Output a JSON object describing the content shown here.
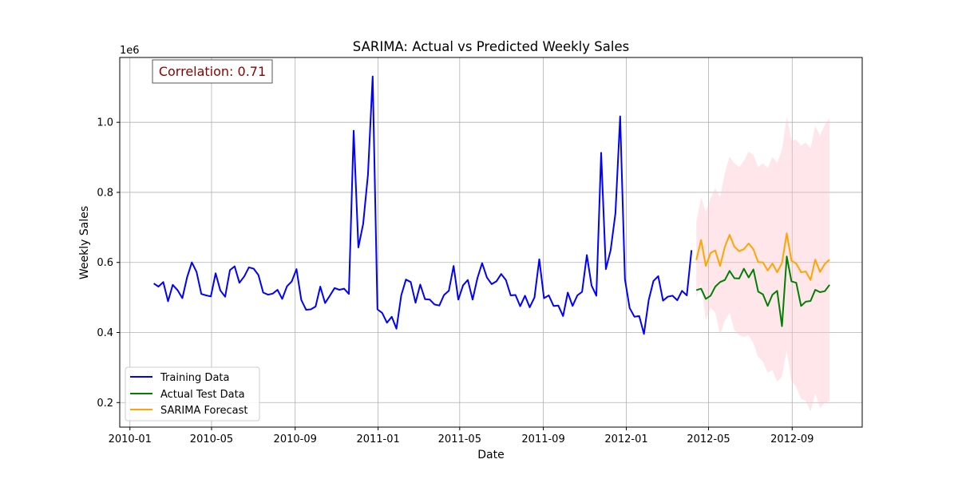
{
  "chart_data": {
    "type": "line",
    "title": "SARIMA: Actual vs Predicted Weekly Sales",
    "xlabel": "Date",
    "ylabel": "Weekly Sales",
    "y_scale_note": "1e6",
    "xlim": [
      "2009-12-17",
      "2012-12-13"
    ],
    "ylim": [
      130000,
      1185000
    ],
    "x_ticks": [
      "2010-01-01",
      "2010-05-01",
      "2010-09-01",
      "2011-01-01",
      "2011-05-01",
      "2011-09-01",
      "2012-01-01",
      "2012-05-01",
      "2012-09-01"
    ],
    "x_tick_labels": [
      "2010-01",
      "2010-05",
      "2010-09",
      "2011-01",
      "2011-05",
      "2011-09",
      "2012-01",
      "2012-05",
      "2012-09"
    ],
    "y_ticks": [
      200000,
      400000,
      600000,
      800000,
      1000000
    ],
    "y_tick_labels": [
      "0.2",
      "0.4",
      "0.6",
      "0.8",
      "1.0"
    ],
    "grid": true,
    "legend_position": "lower-left",
    "annotation": "Correlation: 0.71",
    "annotation_color": "#8b0000",
    "series": [
      {
        "name": "Training Data",
        "color": "#0000ff",
        "start_date": "2010-02-05",
        "step_days": 7,
        "values": [
          540000,
          531000,
          544000,
          489000,
          536000,
          521000,
          498000,
          557000,
          600000,
          573000,
          510000,
          506000,
          503000,
          569000,
          520000,
          502000,
          578000,
          589000,
          542000,
          560000,
          586000,
          582000,
          564000,
          514000,
          508000,
          511000,
          522000,
          496000,
          532000,
          546000,
          581000,
          493000,
          465000,
          466000,
          474000,
          531000,
          484000,
          505000,
          527000,
          522000,
          525000,
          510000,
          976000,
          643000,
          710000,
          850000,
          1131000,
          466000,
          456000,
          428000,
          445000,
          411000,
          506000,
          551000,
          544000,
          485000,
          537000,
          495000,
          494000,
          480000,
          477000,
          507000,
          519000,
          590000,
          494000,
          535000,
          550000,
          494000,
          555000,
          598000,
          557000,
          538000,
          546000,
          567000,
          550000,
          506000,
          507000,
          475000,
          505000,
          472000,
          500000,
          609000,
          498000,
          506000,
          476000,
          477000,
          447000,
          514000,
          476000,
          506000,
          516000,
          621000,
          534000,
          505000,
          913000,
          581000,
          635000,
          740000,
          1017000,
          552000,
          470000,
          445000,
          447000,
          396000,
          493000,
          547000,
          561000,
          491000,
          502000,
          505000,
          492000,
          519000,
          506000,
          635000
        ]
      },
      {
        "name": "Actual Test Data",
        "color": "#008000",
        "start_date": "2012-04-13",
        "step_days": 7,
        "values": [
          521000,
          525000,
          496000,
          505000,
          531000,
          544000,
          550000,
          576000,
          555000,
          554000,
          582000,
          557000,
          580000,
          517000,
          509000,
          476000,
          508000,
          519000,
          418000,
          617000,
          546000,
          542000,
          476000,
          488000,
          490000,
          522000,
          515000,
          518000,
          536000
        ]
      },
      {
        "name": "SARIMA Forecast",
        "color": "#ffa500",
        "start_date": "2012-04-13",
        "step_days": 7,
        "values": [
          607000,
          664000,
          590000,
          627000,
          634000,
          590000,
          645000,
          679000,
          645000,
          632000,
          638000,
          654000,
          638000,
          601000,
          600000,
          577000,
          597000,
          572000,
          598000,
          683000,
          605000,
          597000,
          572000,
          574000,
          550000,
          608000,
          573000,
          596000,
          608000
        ]
      }
    ],
    "confidence_band": {
      "color": "#ffc0cb",
      "upper": [
        714000,
        786000,
        745000,
        783000,
        812000,
        787000,
        856000,
        902000,
        883000,
        872000,
        889000,
        916000,
        907000,
        872000,
        883000,
        869000,
        901000,
        885000,
        922000,
        1017000,
        949000,
        950000,
        933000,
        943000,
        925000,
        990000,
        962000,
        993000,
        1012000
      ],
      "lower": [
        500000,
        542000,
        435000,
        471000,
        456000,
        393000,
        434000,
        456000,
        407000,
        392000,
        387000,
        392000,
        369000,
        330000,
        317000,
        285000,
        293000,
        259000,
        274000,
        349000,
        261000,
        244000,
        211000,
        205000,
        175000,
        226000,
        184000,
        199000,
        204000
      ]
    }
  }
}
